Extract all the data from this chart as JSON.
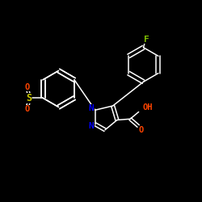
{
  "background_color": "#000000",
  "bond_color": "#ffffff",
  "atom_colors": {
    "F": "#7fbf00",
    "S": "#cccc00",
    "O": "#ff4400",
    "N": "#0000ff",
    "C": "#ffffff",
    "H": "#ffffff"
  },
  "lw": 1.1,
  "fs": 7.5,
  "xlim": [
    0,
    10
  ],
  "ylim": [
    0,
    10
  ]
}
